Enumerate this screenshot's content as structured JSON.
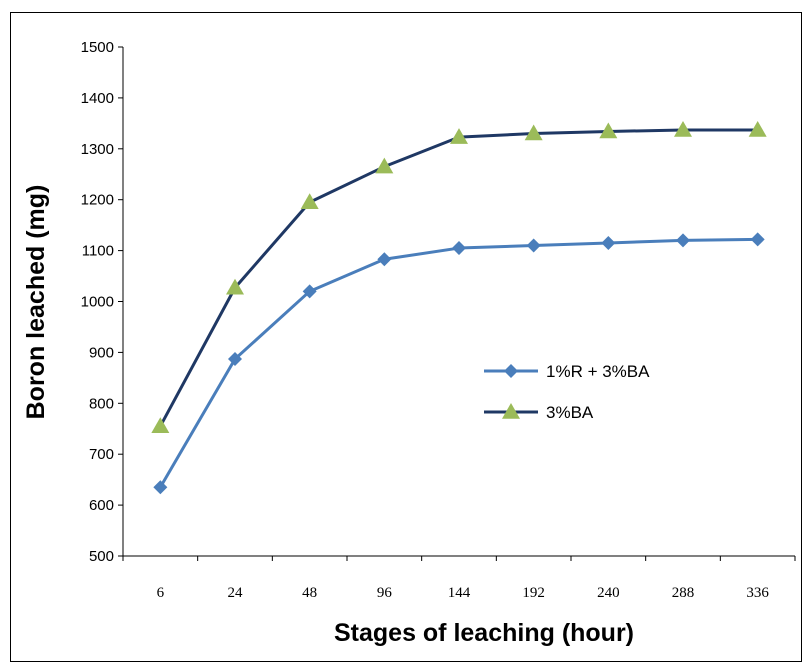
{
  "chart_data": {
    "type": "line",
    "title": "",
    "xlabel": "Stages of leaching (hour)",
    "ylabel": "Boron leached (mg)",
    "categories": [
      "6",
      "24",
      "48",
      "96",
      "144",
      "192",
      "240",
      "288",
      "336"
    ],
    "ylim": [
      500,
      1500
    ],
    "yticks": [
      500,
      600,
      700,
      800,
      900,
      1000,
      1100,
      1200,
      1300,
      1400,
      1500
    ],
    "grid": false,
    "legend_position": "right-middle",
    "series": [
      {
        "name": "1%R + 3%BA",
        "color": "#4a7ebb",
        "marker": "diamond",
        "marker_color": "#4a7ebb",
        "values": [
          635,
          887,
          1020,
          1083,
          1105,
          1110,
          1115,
          1120,
          1122
        ]
      },
      {
        "name": "3%BA",
        "color": "#1f3864",
        "marker": "triangle",
        "marker_color": "#9bbb59",
        "values": [
          755,
          1027,
          1195,
          1265,
          1323,
          1330,
          1334,
          1337,
          1337
        ]
      }
    ]
  }
}
